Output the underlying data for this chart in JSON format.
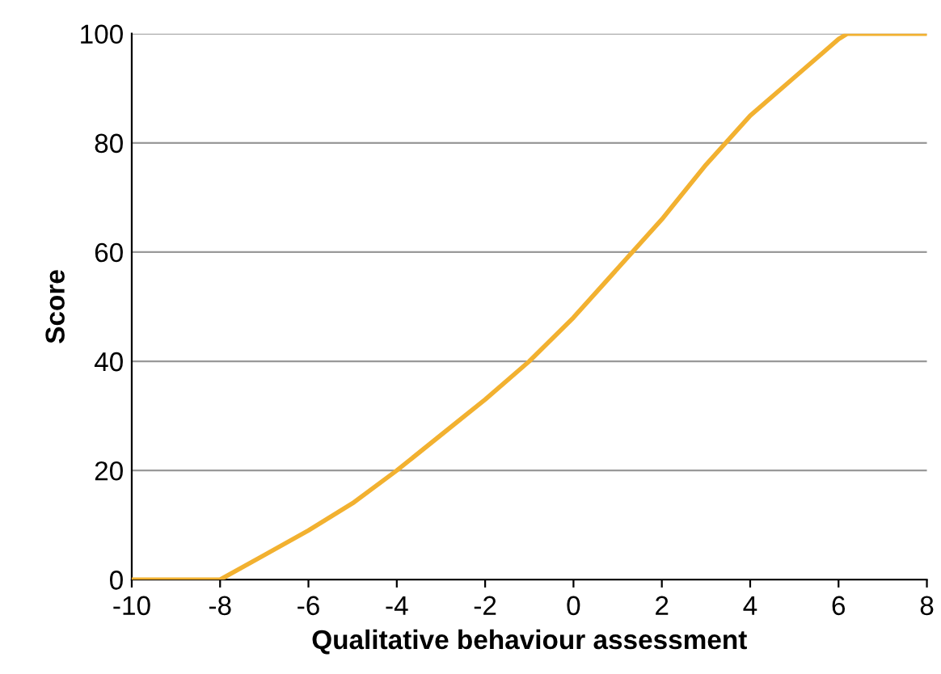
{
  "chart_data": {
    "type": "line",
    "xlabel": "Qualitative behaviour assessment",
    "ylabel": "Score",
    "x": [
      -10,
      -8,
      -7,
      -6,
      -5,
      -4,
      -3,
      -2,
      -1,
      0,
      1,
      2,
      3,
      4,
      5,
      6,
      6.2,
      8
    ],
    "series": [
      {
        "color": "#f2b130",
        "values": [
          0,
          0,
          4.5,
          9,
          14,
          20,
          26.5,
          33,
          40,
          48,
          57,
          66,
          76,
          85,
          92,
          99,
          100,
          100
        ]
      }
    ],
    "xlim": [
      -10,
      8
    ],
    "ylim": [
      0,
      100
    ],
    "xticks": [
      -10,
      -8,
      -6,
      -4,
      -2,
      0,
      2,
      4,
      6,
      8
    ],
    "yticks": [
      0,
      20,
      40,
      60,
      80,
      100
    ],
    "grid": "y",
    "marker": "none",
    "line_style": "solid"
  }
}
